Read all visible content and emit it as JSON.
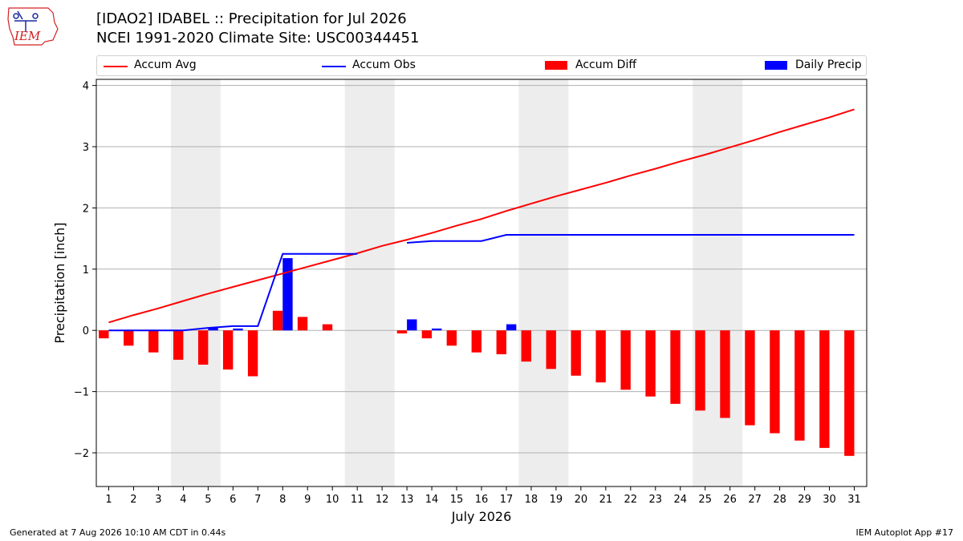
{
  "logo": {
    "text": "IEM",
    "color": "#d42020"
  },
  "title_line1": "[IDAO2] IDABEL :: Precipitation for Jul 2026",
  "title_line2": "NCEI 1991-2020 Climate Site: USC00344451",
  "legend": [
    {
      "label": "Accum Avg",
      "kind": "line",
      "color": "#ff0000"
    },
    {
      "label": "Accum Obs",
      "kind": "line",
      "color": "#0000ff"
    },
    {
      "label": "Accum Diff",
      "kind": "patch",
      "color": "#ff0000"
    },
    {
      "label": "Daily Precip",
      "kind": "patch",
      "color": "#0000ff"
    }
  ],
  "footer_left": "Generated at 7 Aug 2026 10:10 AM CDT in 0.44s",
  "footer_right": "IEM Autoplot App #17",
  "chart_data": {
    "type": "bar",
    "xlabel": "July 2026",
    "ylabel": "Precipitation [inch]",
    "xlim": [
      0.5,
      31.5
    ],
    "ylim": [
      -2.55,
      4.1
    ],
    "y_ticks": [
      -2,
      -1,
      0,
      1,
      2,
      3,
      4
    ],
    "y_tick_labels": [
      "−2",
      "−1",
      "0",
      "1",
      "2",
      "3",
      "4"
    ],
    "x_ticks": [
      1,
      2,
      3,
      4,
      5,
      6,
      7,
      8,
      9,
      10,
      11,
      12,
      13,
      14,
      15,
      16,
      17,
      18,
      19,
      20,
      21,
      22,
      23,
      24,
      25,
      26,
      27,
      28,
      29,
      30,
      31
    ],
    "grid": "horizontal",
    "weekend_shading": [
      [
        3.5,
        5.5
      ],
      [
        10.5,
        12.5
      ],
      [
        17.5,
        19.5
      ],
      [
        24.5,
        26.5
      ]
    ],
    "series": [
      {
        "name": "Accum Avg",
        "type": "line",
        "color": "#ff0000",
        "x": [
          1,
          2,
          3,
          4,
          5,
          6,
          7,
          8,
          9,
          10,
          11,
          12,
          13,
          14,
          15,
          16,
          17,
          18,
          19,
          20,
          21,
          22,
          23,
          24,
          25,
          26,
          27,
          28,
          29,
          30,
          31
        ],
        "values": [
          0.13,
          0.25,
          0.36,
          0.48,
          0.6,
          0.71,
          0.82,
          0.93,
          1.04,
          1.15,
          1.26,
          1.38,
          1.48,
          1.59,
          1.71,
          1.82,
          1.95,
          2.07,
          2.19,
          2.3,
          2.41,
          2.53,
          2.64,
          2.76,
          2.87,
          2.99,
          3.11,
          3.24,
          3.36,
          3.48,
          3.61
        ]
      },
      {
        "name": "Accum Obs",
        "type": "line",
        "color": "#0000ff",
        "x": [
          1,
          2,
          3,
          4,
          5,
          6,
          7,
          8,
          9,
          10,
          11,
          12,
          13,
          14,
          15,
          16,
          17,
          18,
          19,
          20,
          21,
          22,
          23,
          24,
          25,
          26,
          27,
          28,
          29,
          30,
          31
        ],
        "values": [
          0.0,
          0.0,
          0.0,
          0.0,
          0.04,
          0.07,
          0.07,
          1.25,
          1.25,
          1.25,
          1.25,
          null,
          1.43,
          1.46,
          1.46,
          1.46,
          1.56,
          1.56,
          1.56,
          1.56,
          1.56,
          1.56,
          1.56,
          1.56,
          1.56,
          1.56,
          1.56,
          1.56,
          1.56,
          1.56,
          1.56
        ]
      },
      {
        "name": "Accum Diff",
        "type": "bar",
        "color": "#ff0000",
        "x": [
          1,
          2,
          3,
          4,
          5,
          6,
          7,
          8,
          9,
          10,
          11,
          12,
          13,
          14,
          15,
          16,
          17,
          18,
          19,
          20,
          21,
          22,
          23,
          24,
          25,
          26,
          27,
          28,
          29,
          30,
          31
        ],
        "values": [
          -0.13,
          -0.25,
          -0.36,
          -0.48,
          -0.56,
          -0.64,
          -0.75,
          0.32,
          0.22,
          0.1,
          null,
          null,
          -0.05,
          -0.13,
          -0.25,
          -0.36,
          -0.39,
          -0.51,
          -0.63,
          -0.74,
          -0.85,
          -0.97,
          -1.08,
          -1.2,
          -1.31,
          -1.43,
          -1.55,
          -1.68,
          -1.8,
          -1.92,
          -2.05
        ]
      },
      {
        "name": "Daily Precip",
        "type": "bar",
        "color": "#0000ff",
        "x": [
          5,
          6,
          8,
          13,
          14,
          17
        ],
        "values": [
          0.04,
          0.03,
          1.18,
          0.18,
          0.03,
          0.1
        ]
      }
    ]
  }
}
